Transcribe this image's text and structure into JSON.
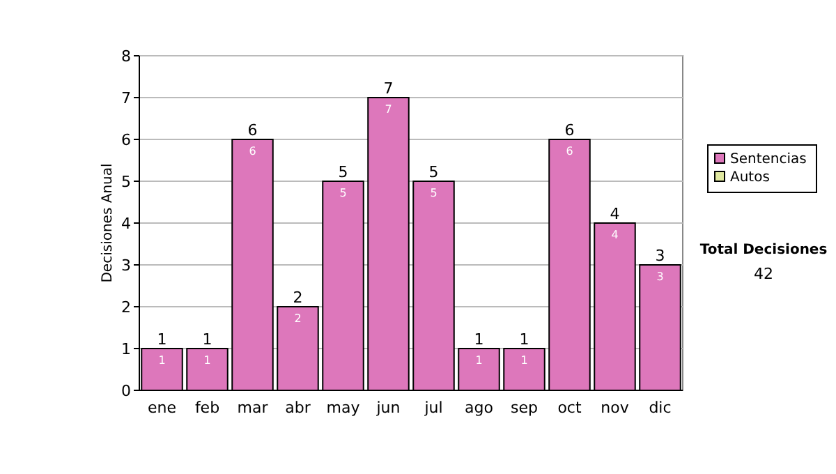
{
  "chart_data": {
    "type": "bar",
    "stacked": true,
    "ylabel": "Decisiones Anual",
    "categories": [
      "ene",
      "feb",
      "mar",
      "abr",
      "may",
      "jun",
      "jul",
      "ago",
      "sep",
      "oct",
      "nov",
      "dic"
    ],
    "series": [
      {
        "name": "Sentencias",
        "color": "#dd77bb",
        "values": [
          1,
          1,
          6,
          2,
          5,
          7,
          5,
          1,
          1,
          6,
          4,
          3
        ],
        "value_labels": [
          "1",
          "1",
          "6",
          "2",
          "5",
          "7",
          "5",
          "1",
          "1",
          "6",
          "4",
          "3"
        ]
      },
      {
        "name": "Autos",
        "color": "#e0e8a0",
        "values": [
          0,
          0,
          0,
          0,
          0,
          0,
          0,
          0,
          0,
          0,
          0,
          0
        ]
      }
    ],
    "totals": [
      "1",
      "1",
      "6",
      "2",
      "5",
      "7",
      "5",
      "1",
      "1",
      "6",
      "4",
      "3"
    ],
    "ylim": [
      0,
      8
    ],
    "yticks": [
      0,
      1,
      2,
      3,
      4,
      5,
      6,
      7,
      8
    ],
    "grid": "y",
    "legend": "right",
    "annotations": [
      "Total Decisiones",
      "42"
    ]
  }
}
